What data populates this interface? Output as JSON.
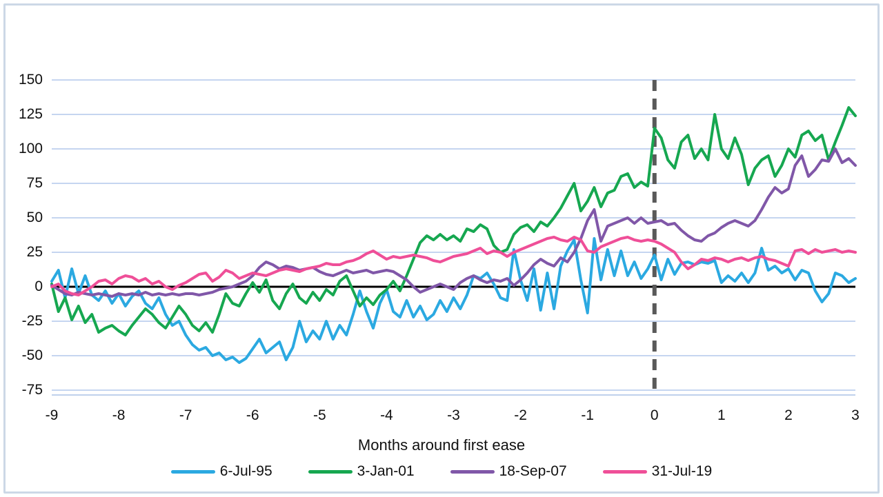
{
  "figure": {
    "background": "#ffffff",
    "border_color": "#ccd8e6",
    "grid_color": "#c5d5f0",
    "axis_line_color": "#bfd0ec",
    "zero_line_color": "#000000",
    "event_line_color": "#595959",
    "text_color": "#111111"
  },
  "chart_data": {
    "type": "line",
    "title": "",
    "xlabel": "Months around first ease",
    "ylabel": "",
    "x_range": [
      -9,
      3
    ],
    "x_ticks": [
      -9,
      -8,
      -7,
      -6,
      -5,
      -4,
      -3,
      -2,
      -1,
      0,
      1,
      2,
      3
    ],
    "y_ticks": [
      150,
      125,
      100,
      75,
      50,
      25,
      0,
      -25,
      -50,
      -75
    ],
    "y_axis_bottom_value": -78.5,
    "grid": true,
    "zero_line": true,
    "event_line_x": 0,
    "legend_position": "bottom",
    "x_start": -9,
    "x_step": 0.1,
    "series": [
      {
        "name": "6-Jul-95",
        "color": "#2BA9E1",
        "values": [
          4,
          12,
          -8,
          13,
          -5,
          8,
          -6,
          -10,
          -3,
          -12,
          -5,
          -14,
          -7,
          -3,
          -12,
          -16,
          -8,
          -20,
          -28,
          -25,
          -35,
          -42,
          -46,
          -44,
          -50,
          -48,
          -53,
          -51,
          -55,
          -52,
          -45,
          -38,
          -48,
          -44,
          -40,
          -53,
          -44,
          -25,
          -40,
          -32,
          -38,
          -25,
          -38,
          -28,
          -35,
          -20,
          -3,
          -18,
          -30,
          -12,
          -2,
          -18,
          -22,
          -10,
          -22,
          -14,
          -24,
          -20,
          -10,
          -18,
          -8,
          -16,
          -6,
          8,
          6,
          10,
          2,
          -8,
          -10,
          27,
          5,
          -10,
          13,
          -17,
          10,
          -16,
          15,
          26,
          34,
          5,
          -19,
          35,
          5,
          27,
          8,
          26,
          8,
          18,
          6,
          13,
          23,
          5,
          20,
          9,
          17,
          18,
          16,
          18,
          17,
          19,
          3,
          8,
          4,
          10,
          3,
          10,
          28,
          12,
          15,
          10,
          13,
          5,
          12,
          10,
          -3,
          -11,
          -5,
          10,
          8,
          3,
          6
        ]
      },
      {
        "name": "3-Jan-01",
        "color": "#16A750",
        "values": [
          2,
          -18,
          -8,
          -24,
          -14,
          -26,
          -20,
          -33,
          -30,
          -28,
          -32,
          -35,
          -28,
          -22,
          -16,
          -20,
          -26,
          -30,
          -22,
          -14,
          -20,
          -28,
          -32,
          -26,
          -33,
          -20,
          -5,
          -12,
          -14,
          -5,
          3,
          -4,
          5,
          -10,
          -16,
          -5,
          2,
          -8,
          -12,
          -4,
          -10,
          -2,
          -6,
          4,
          8,
          -3,
          -14,
          -8,
          -13,
          -6,
          -2,
          4,
          -3,
          8,
          20,
          32,
          37,
          34,
          38,
          34,
          37,
          33,
          42,
          40,
          45,
          42,
          30,
          25,
          27,
          38,
          43,
          45,
          40,
          47,
          44,
          50,
          57,
          66,
          75,
          55,
          62,
          72,
          58,
          68,
          70,
          80,
          82,
          72,
          76,
          73,
          115,
          108,
          92,
          86,
          105,
          110,
          93,
          100,
          92,
          125,
          100,
          93,
          108,
          96,
          74,
          86,
          92,
          95,
          80,
          88,
          100,
          94,
          110,
          113,
          106,
          110,
          92,
          105,
          117,
          130,
          124
        ]
      },
      {
        "name": "18-Sep-07",
        "color": "#8057A8",
        "values": [
          1,
          -2,
          -5,
          -6,
          -4,
          -5,
          -6,
          -5,
          -6,
          -7,
          -5,
          -6,
          -5,
          -6,
          -4,
          -6,
          -5,
          -6,
          -5,
          -6,
          -5,
          -5,
          -6,
          -5,
          -4,
          -2,
          -1,
          0,
          2,
          4,
          8,
          14,
          18,
          16,
          13,
          15,
          14,
          12,
          13,
          14,
          11,
          9,
          8,
          10,
          12,
          10,
          11,
          12,
          10,
          11,
          12,
          11,
          8,
          5,
          0,
          -4,
          -2,
          0,
          2,
          0,
          -2,
          3,
          6,
          8,
          5,
          3,
          5,
          4,
          6,
          1,
          5,
          10,
          16,
          20,
          17,
          15,
          21,
          18,
          25,
          35,
          48,
          56,
          33,
          44,
          46,
          48,
          50,
          46,
          50,
          46,
          47,
          48,
          45,
          46,
          41,
          37,
          34,
          33,
          37,
          39,
          43,
          46,
          48,
          46,
          44,
          48,
          56,
          65,
          72,
          68,
          71,
          88,
          95,
          80,
          85,
          92,
          91,
          100,
          90,
          93,
          88
        ]
      },
      {
        "name": "31-Jul-19",
        "color": "#EF4F98",
        "values": [
          0,
          2,
          -3,
          -5,
          -6,
          -3,
          0,
          4,
          5,
          2,
          6,
          8,
          7,
          4,
          6,
          2,
          4,
          0,
          -2,
          1,
          3,
          6,
          9,
          10,
          4,
          7,
          12,
          10,
          6,
          8,
          10,
          9,
          8,
          10,
          12,
          13,
          12,
          11,
          13,
          14,
          15,
          17,
          16,
          16,
          18,
          19,
          21,
          24,
          26,
          23,
          20,
          22,
          21,
          22,
          23,
          22,
          21,
          19,
          18,
          20,
          22,
          23,
          24,
          26,
          28,
          24,
          26,
          25,
          22,
          25,
          27,
          29,
          31,
          33,
          35,
          36,
          34,
          33,
          36,
          34,
          26,
          25,
          29,
          31,
          33,
          35,
          36,
          34,
          33,
          34,
          33,
          31,
          28,
          25,
          18,
          13,
          16,
          20,
          19,
          21,
          20,
          18,
          20,
          21,
          19,
          21,
          22,
          20,
          19,
          17,
          15,
          26,
          27,
          24,
          27,
          25,
          26,
          27,
          25,
          26,
          25
        ]
      }
    ]
  }
}
